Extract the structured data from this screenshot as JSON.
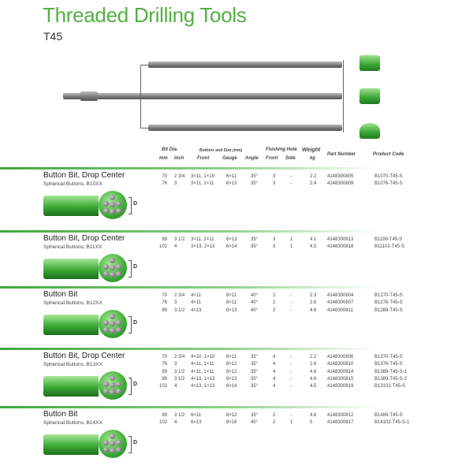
{
  "title": "Threaded Drilling Tools",
  "subtitle": "T45",
  "header": {
    "bit_dia": "Bit Dia.",
    "mm": "mm",
    "inch": "inch",
    "buttons": "Buttons and Size (mm)",
    "front": "Front",
    "gauge": "Gauge",
    "angle": "Angle",
    "flushing": "Flushing Hole",
    "fl_front": "Front",
    "fl_side": "Side",
    "weight": "Weight",
    "kg": "kg",
    "part": "Part Number",
    "code": "Product Code"
  },
  "sections": [
    {
      "title": "Button Bit, Drop Center",
      "subtitle": "Spherical Buttons, B10XX",
      "rows": [
        [
          "70",
          "2 3/4",
          "3×11, 1×19",
          "6×11",
          "35°",
          "3",
          "-",
          "2.2",
          "4148300805",
          "B1070-T45-S"
        ],
        [
          "76",
          "3",
          "3×11, 1×11",
          "6×13",
          "35°",
          "3",
          "-",
          "2.4",
          "4148300809",
          "B1076-T45-S"
        ]
      ]
    },
    {
      "title": "Button Bit, Drop Center",
      "subtitle": "Spherical Buttons, B11XX",
      "rows": [
        [
          "89",
          "3 1/2",
          "3×11, 2×11",
          "6×13",
          "35°",
          "3",
          "1",
          "4.1",
          "4148300813",
          "B1189-T45-S"
        ],
        [
          "102",
          "4",
          "3×13, 2×13",
          "6×14",
          "35°",
          "3",
          "1",
          "4.5",
          "4148300818",
          "B11102-T45-S"
        ]
      ]
    },
    {
      "title": "Button Bit",
      "subtitle": "Spherical Buttons, B12XX",
      "rows": [
        [
          "70",
          "2 3/4",
          "4×11",
          "8×11",
          "40°",
          "2",
          "-",
          "2.3",
          "4148300804",
          "B1270-T45-S"
        ],
        [
          "76",
          "3",
          "4×11",
          "8×11",
          "40°",
          "2",
          "-",
          "2.6",
          "4148300807",
          "B1276-T45-S"
        ],
        [
          "89",
          "3 1/2",
          "4×13",
          "8×13",
          "40°",
          "2",
          "-",
          "4.6",
          "4148300811",
          "B1289-T45-S"
        ]
      ]
    },
    {
      "title": "Button Bit, Drop Center",
      "subtitle": "Spherical Buttons, B13XX",
      "rows": [
        [
          "70",
          "2 3/4",
          "4×10, 1×10",
          "8×11",
          "35°",
          "4",
          "-",
          "2.2",
          "4148300806",
          "B1370-T45-S"
        ],
        [
          "76",
          "3",
          "4×11, 1×11",
          "8×12",
          "35°",
          "4",
          "-",
          "2.6",
          "4148300810",
          "B1376-T45-S"
        ],
        [
          "89",
          "3 1/2",
          "4×11, 1×11",
          "8×12",
          "35°",
          "4",
          "-",
          "4.6",
          "4148300814",
          "B1389-T45-S-1"
        ],
        [
          "89",
          "3 1/2",
          "4×13, 1×13",
          "8×13",
          "35°",
          "4",
          "-",
          "4.6",
          "4148300815",
          "B1389-T45-S-2"
        ],
        [
          "102",
          "4",
          "4×13, 1×13",
          "8×14",
          "35°",
          "4",
          "-",
          "4.5",
          "4148300819",
          "B13102-T45-S"
        ]
      ]
    },
    {
      "title": "Button Bit",
      "subtitle": "Spherical Buttons, B14XX",
      "rows": [
        [
          "89",
          "3 1/2",
          "6×11",
          "8×12",
          "35°",
          "2",
          "-",
          "4.6",
          "4148300812",
          "B1489-T45-S"
        ],
        [
          "102",
          "4",
          "6×13",
          "8×16",
          "40°",
          "2",
          "1",
          "5",
          "4148300817",
          "B14102-T45-S-1"
        ]
      ]
    }
  ],
  "dimension_label": "D",
  "colors": {
    "brand_green": "#52b043"
  }
}
